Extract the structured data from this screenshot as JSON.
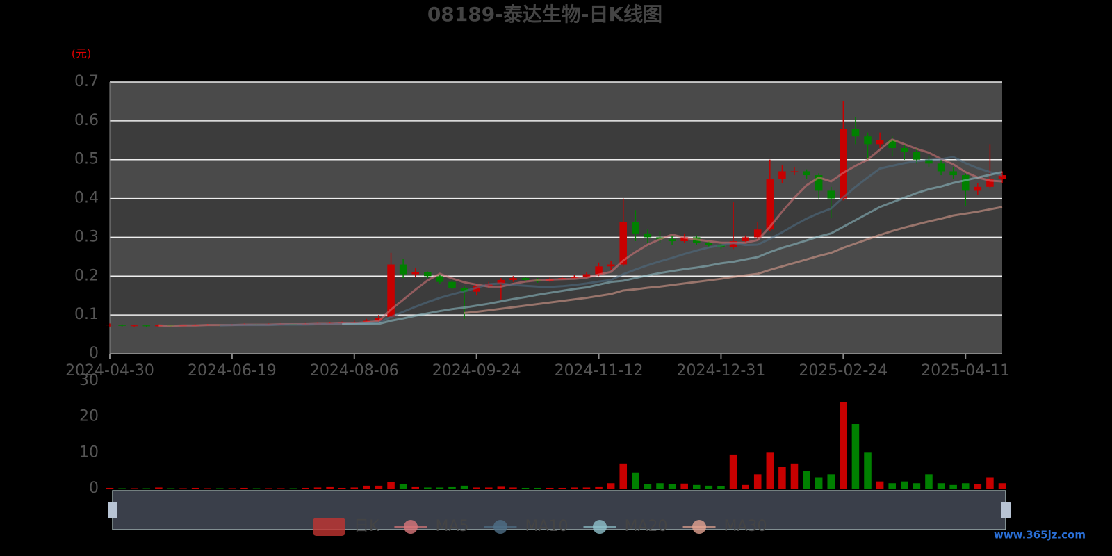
{
  "chart_data": [
    {
      "type": "candlestick",
      "title": "08189-泰达生物-日K线图",
      "unit_label": "(元)",
      "categories": [
        "2024-04-30",
        null,
        null,
        null,
        null,
        null,
        null,
        null,
        null,
        null,
        "2024-06-19",
        null,
        null,
        null,
        null,
        null,
        null,
        null,
        null,
        null,
        "2024-08-06",
        null,
        null,
        null,
        null,
        null,
        null,
        null,
        null,
        null,
        "2024-09-24",
        null,
        null,
        null,
        null,
        null,
        null,
        null,
        null,
        null,
        "2024-11-12",
        null,
        null,
        null,
        null,
        null,
        null,
        null,
        null,
        null,
        "2024-12-31",
        null,
        null,
        null,
        null,
        null,
        null,
        null,
        null,
        null,
        "2025-02-24",
        null,
        null,
        null,
        null,
        null,
        null,
        null,
        null,
        null,
        "2025-04-11",
        null,
        null,
        null
      ],
      "ylim": [
        0,
        0.7
      ],
      "yticks": [
        0,
        0.1,
        0.2,
        0.3,
        0.4,
        0.5,
        0.6,
        0.7
      ],
      "grid": true,
      "up_color": "#c80000",
      "down_color": "#008000",
      "series": [
        {
          "name": "日K",
          "type": "candlestick",
          "color": "#c23531",
          "values": [
            [
              0.074,
              0.075,
              0.07,
              0.078
            ],
            [
              0.075,
              0.072,
              0.068,
              0.076
            ],
            [
              0.072,
              0.073,
              0.07,
              0.075
            ],
            [
              0.073,
              0.071,
              0.069,
              0.074
            ],
            [
              0.071,
              0.074,
              0.07,
              0.076
            ],
            [
              0.074,
              0.072,
              0.07,
              0.075
            ],
            [
              0.072,
              0.073,
              0.071,
              0.075
            ],
            [
              0.073,
              0.074,
              0.072,
              0.076
            ],
            [
              0.074,
              0.075,
              0.073,
              0.077
            ],
            [
              0.075,
              0.074,
              0.072,
              0.076
            ],
            [
              0.074,
              0.075,
              0.073,
              0.077
            ],
            [
              0.075,
              0.076,
              0.074,
              0.078
            ],
            [
              0.076,
              0.075,
              0.073,
              0.077
            ],
            [
              0.075,
              0.076,
              0.074,
              0.078
            ],
            [
              0.076,
              0.077,
              0.075,
              0.079
            ],
            [
              0.077,
              0.076,
              0.074,
              0.078
            ],
            [
              0.076,
              0.077,
              0.075,
              0.079
            ],
            [
              0.077,
              0.078,
              0.076,
              0.08
            ],
            [
              0.078,
              0.079,
              0.077,
              0.081
            ],
            [
              0.079,
              0.08,
              0.078,
              0.083
            ],
            [
              0.08,
              0.082,
              0.079,
              0.085
            ],
            [
              0.082,
              0.085,
              0.08,
              0.09
            ],
            [
              0.085,
              0.092,
              0.083,
              0.1
            ],
            [
              0.095,
              0.23,
              0.093,
              0.26
            ],
            [
              0.23,
              0.205,
              0.195,
              0.245
            ],
            [
              0.205,
              0.21,
              0.198,
              0.22
            ],
            [
              0.21,
              0.2,
              0.195,
              0.212
            ],
            [
              0.2,
              0.185,
              0.18,
              0.205
            ],
            [
              0.185,
              0.17,
              0.165,
              0.19
            ],
            [
              0.17,
              0.16,
              0.09,
              0.175
            ],
            [
              0.16,
              0.175,
              0.15,
              0.18
            ],
            [
              0.175,
              0.18,
              0.17,
              0.185
            ],
            [
              0.18,
              0.19,
              0.14,
              0.195
            ],
            [
              0.19,
              0.195,
              0.185,
              0.2
            ],
            [
              0.195,
              0.19,
              0.185,
              0.198
            ],
            [
              0.19,
              0.188,
              0.183,
              0.195
            ],
            [
              0.188,
              0.192,
              0.185,
              0.196
            ],
            [
              0.192,
              0.195,
              0.19,
              0.198
            ],
            [
              0.195,
              0.198,
              0.192,
              0.202
            ],
            [
              0.198,
              0.205,
              0.195,
              0.21
            ],
            [
              0.205,
              0.225,
              0.2,
              0.235
            ],
            [
              0.225,
              0.23,
              0.215,
              0.24
            ],
            [
              0.23,
              0.34,
              0.225,
              0.4
            ],
            [
              0.34,
              0.31,
              0.29,
              0.37
            ],
            [
              0.31,
              0.3,
              0.285,
              0.32
            ],
            [
              0.3,
              0.295,
              0.285,
              0.315
            ],
            [
              0.295,
              0.29,
              0.28,
              0.305
            ],
            [
              0.29,
              0.3,
              0.285,
              0.31
            ],
            [
              0.3,
              0.285,
              0.28,
              0.305
            ],
            [
              0.285,
              0.28,
              0.275,
              0.29
            ],
            [
              0.28,
              0.275,
              0.27,
              0.285
            ],
            [
              0.275,
              0.29,
              0.27,
              0.39
            ],
            [
              0.29,
              0.3,
              0.285,
              0.305
            ],
            [
              0.3,
              0.32,
              0.295,
              0.34
            ],
            [
              0.32,
              0.45,
              0.315,
              0.5
            ],
            [
              0.45,
              0.47,
              0.44,
              0.485
            ],
            [
              0.47,
              0.47,
              0.46,
              0.48
            ],
            [
              0.47,
              0.46,
              0.45,
              0.475
            ],
            [
              0.46,
              0.42,
              0.4,
              0.465
            ],
            [
              0.42,
              0.4,
              0.35,
              0.43
            ],
            [
              0.4,
              0.58,
              0.395,
              0.65
            ],
            [
              0.58,
              0.56,
              0.54,
              0.61
            ],
            [
              0.56,
              0.54,
              0.5,
              0.57
            ],
            [
              0.54,
              0.55,
              0.53,
              0.57
            ],
            [
              0.55,
              0.53,
              0.51,
              0.56
            ],
            [
              0.53,
              0.52,
              0.5,
              0.54
            ],
            [
              0.52,
              0.5,
              0.49,
              0.53
            ],
            [
              0.5,
              0.49,
              0.48,
              0.51
            ],
            [
              0.49,
              0.47,
              0.46,
              0.5
            ],
            [
              0.47,
              0.46,
              0.45,
              0.48
            ],
            [
              0.46,
              0.42,
              0.38,
              0.465
            ],
            [
              0.42,
              0.43,
              0.41,
              0.44
            ],
            [
              0.43,
              0.45,
              0.425,
              0.54
            ],
            [
              0.45,
              0.46,
              0.44,
              0.47
            ]
          ]
        },
        {
          "name": "MA5",
          "type": "line",
          "color": "#d9777a",
          "values": [
            null,
            null,
            null,
            null,
            0.073,
            0.072,
            0.073,
            0.073,
            0.074,
            0.074,
            0.074,
            0.075,
            0.075,
            0.075,
            0.076,
            0.076,
            0.076,
            0.077,
            0.077,
            0.078,
            0.079,
            0.081,
            0.084,
            0.114,
            0.139,
            0.165,
            0.189,
            0.206,
            0.194,
            0.184,
            0.178,
            0.173,
            0.173,
            0.18,
            0.186,
            0.189,
            0.191,
            0.192,
            0.193,
            0.196,
            0.204,
            0.211,
            0.24,
            0.262,
            0.281,
            0.295,
            0.307,
            0.299,
            0.294,
            0.29,
            0.286,
            0.286,
            0.286,
            0.293,
            0.327,
            0.366,
            0.402,
            0.434,
            0.454,
            0.444,
            0.466,
            0.484,
            0.5,
            0.526,
            0.552,
            0.54,
            0.528,
            0.518,
            0.502,
            0.488,
            0.468,
            0.454,
            0.446,
            0.444
          ]
        },
        {
          "name": "MA10",
          "type": "line",
          "color": "#4f6f87",
          "values": [
            null,
            null,
            null,
            null,
            null,
            null,
            null,
            null,
            null,
            0.073,
            0.074,
            0.074,
            0.074,
            0.074,
            0.075,
            0.075,
            0.075,
            0.076,
            0.076,
            0.077,
            0.077,
            0.078,
            0.08,
            0.095,
            0.108,
            0.121,
            0.133,
            0.144,
            0.153,
            0.161,
            0.17,
            0.179,
            0.181,
            0.177,
            0.175,
            0.173,
            0.172,
            0.174,
            0.177,
            0.181,
            0.186,
            0.19,
            0.205,
            0.217,
            0.228,
            0.238,
            0.247,
            0.257,
            0.266,
            0.274,
            0.279,
            0.285,
            0.28,
            0.281,
            0.296,
            0.313,
            0.331,
            0.348,
            0.362,
            0.374,
            0.403,
            0.43,
            0.454,
            0.477,
            0.484,
            0.491,
            0.496,
            0.499,
            0.501,
            0.507,
            0.491,
            0.478,
            0.468,
            0.459
          ]
        },
        {
          "name": "MA20",
          "type": "line",
          "color": "#8fc1cb",
          "values": [
            null,
            null,
            null,
            null,
            null,
            null,
            null,
            null,
            null,
            null,
            null,
            null,
            null,
            null,
            null,
            null,
            null,
            null,
            null,
            0.076,
            0.076,
            0.077,
            0.077,
            0.085,
            0.091,
            0.098,
            0.104,
            0.11,
            0.115,
            0.119,
            0.124,
            0.129,
            0.135,
            0.141,
            0.146,
            0.152,
            0.157,
            0.162,
            0.167,
            0.171,
            0.178,
            0.185,
            0.188,
            0.195,
            0.202,
            0.208,
            0.213,
            0.218,
            0.222,
            0.227,
            0.233,
            0.237,
            0.243,
            0.249,
            0.262,
            0.273,
            0.282,
            0.292,
            0.302,
            0.31,
            0.327,
            0.344,
            0.361,
            0.378,
            0.39,
            0.402,
            0.414,
            0.424,
            0.431,
            0.44,
            0.447,
            0.454,
            0.461,
            0.468
          ]
        },
        {
          "name": "MA30",
          "type": "line",
          "color": "#e3a391",
          "values": [
            null,
            null,
            null,
            null,
            null,
            null,
            null,
            null,
            null,
            null,
            null,
            null,
            null,
            null,
            null,
            null,
            null,
            null,
            null,
            null,
            null,
            null,
            null,
            null,
            null,
            null,
            null,
            null,
            null,
            0.105,
            0.108,
            0.112,
            0.116,
            0.12,
            0.124,
            0.128,
            0.132,
            0.136,
            0.14,
            0.144,
            0.149,
            0.154,
            0.163,
            0.166,
            0.17,
            0.173,
            0.177,
            0.181,
            0.185,
            0.189,
            0.193,
            0.198,
            0.202,
            0.206,
            0.216,
            0.225,
            0.234,
            0.243,
            0.252,
            0.26,
            0.273,
            0.284,
            0.295,
            0.306,
            0.316,
            0.325,
            0.333,
            0.341,
            0.348,
            0.356,
            0.361,
            0.366,
            0.372,
            0.378
          ]
        }
      ]
    },
    {
      "type": "bar",
      "ylim": [
        0,
        30
      ],
      "yticks": [
        0,
        10,
        20,
        30
      ],
      "up_color": "#c80000",
      "down_color": "#008000",
      "values": [
        0.2,
        0.1,
        0.1,
        0.1,
        0.3,
        0.1,
        0.1,
        0.2,
        0.1,
        0.1,
        0.1,
        0.2,
        0.1,
        0.1,
        0.1,
        0.1,
        0.2,
        0.3,
        0.4,
        0.2,
        0.3,
        0.8,
        0.8,
        1.8,
        1.2,
        0.4,
        0.3,
        0.3,
        0.4,
        0.8,
        0.3,
        0.3,
        0.5,
        0.3,
        0.2,
        0.2,
        0.2,
        0.2,
        0.3,
        0.3,
        0.4,
        1.5,
        7,
        4.5,
        1.2,
        1.5,
        1.2,
        1.4,
        1,
        0.8,
        0.6,
        9.5,
        1,
        4,
        10,
        6,
        7,
        5,
        3,
        4,
        24,
        18,
        10,
        2,
        1.5,
        2,
        1.5,
        4,
        1.5,
        1,
        1.5,
        1.2,
        3,
        1.5
      ]
    }
  ],
  "watermark": "www.365jz.com"
}
